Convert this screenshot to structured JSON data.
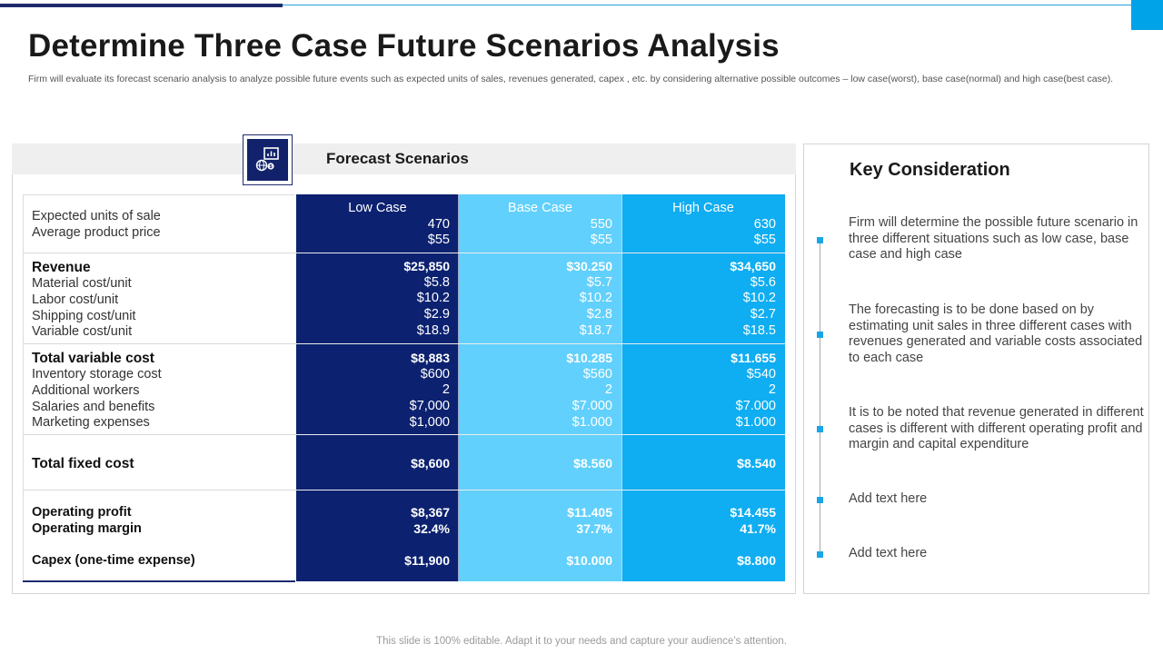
{
  "header": {
    "title": "Determine Three Case Future Scenarios Analysis",
    "subtitle": "Firm will evaluate its forecast scenario analysis to analyze possible future events such as expected units of sales, revenues generated, capex , etc. by considering alternative possible outcomes – low case(worst), base case(normal) and high case(best case)."
  },
  "forecast": {
    "title": "Forecast Scenarios",
    "icon": "chart-globe-icon",
    "columns": [
      "Low Case",
      "Base Case",
      "High  Case"
    ],
    "rows": [
      {
        "label": "Expected units of sale",
        "values": [
          "470",
          "550",
          "630"
        ]
      },
      {
        "label": "Average product price",
        "values": [
          "$55",
          "$55",
          "$55"
        ]
      },
      {
        "label": "Revenue",
        "values": [
          "$25,850",
          "$30.250",
          "$34,650"
        ]
      },
      {
        "label": "Material cost/unit",
        "values": [
          "$5.8",
          "$5.7",
          "$5.6"
        ]
      },
      {
        "label": "Labor cost/unit",
        "values": [
          "$10.2",
          "$10.2",
          "$10.2"
        ]
      },
      {
        "label": "Shipping cost/unit",
        "values": [
          "$2.9",
          "$2.8",
          "$2.7"
        ]
      },
      {
        "label": "Variable cost/unit",
        "values": [
          "$18.9",
          "$18.7",
          "$18.5"
        ]
      },
      {
        "label": "Total variable cost",
        "values": [
          "$8,883",
          "$10.285",
          "$11.655"
        ]
      },
      {
        "label": "Inventory storage cost",
        "values": [
          "$600",
          "$560",
          "$540"
        ]
      },
      {
        "label": "Additional workers",
        "values": [
          "2",
          "2",
          "2"
        ]
      },
      {
        "label": "Salaries and benefits",
        "values": [
          "$7,000",
          "$7.000",
          "$7.000"
        ]
      },
      {
        "label": "Marketing expenses",
        "values": [
          "$1,000",
          "$1.000",
          "$1.000"
        ]
      },
      {
        "label": "Total fixed cost",
        "values": [
          "$8,600",
          "$8.560",
          "$8.540"
        ]
      },
      {
        "label": "Operating profit",
        "values": [
          "$8,367",
          "$11.405",
          "$14.455"
        ]
      },
      {
        "label": "Operating margin",
        "values": [
          "32.4%",
          "37.7%",
          "41.7%"
        ]
      },
      {
        "label": "Capex (one-time expense)",
        "values": [
          "$11,900",
          "$10.000",
          "$8.800"
        ]
      }
    ]
  },
  "key_consideration": {
    "title": "Key Consideration",
    "items": [
      "Firm will determine the possible future scenario in three different situations such as low case, base case and high case",
      "The forecasting is to be done based on by estimating unit sales in three different cases with revenues generated  and variable costs associated to each case",
      "It is to be noted that revenue generated in different cases is different with different operating profit and margin and capital expenditure",
      "Add text here",
      "Add text here"
    ]
  },
  "footer": {
    "text": "This slide is 100% editable. Adapt it to your needs and capture your audience’s attention."
  },
  "colors": {
    "low_case": "#0c2170",
    "base_case": "#61d0fc",
    "high_case": "#0fadf1",
    "accent": "#00a3e8"
  }
}
